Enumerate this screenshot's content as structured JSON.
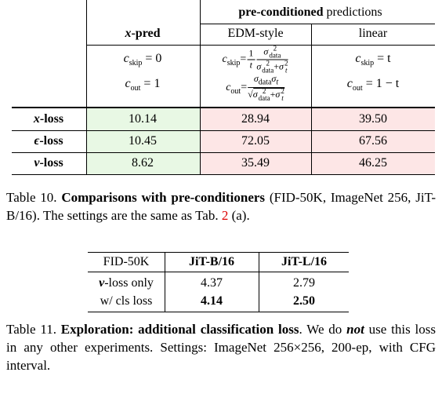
{
  "table10": {
    "group_header": [
      "pre-conditioned",
      "predictions"
    ],
    "col_xpred": {
      "symbol": "x",
      "text": "-pred"
    },
    "columns": [
      "EDM-style",
      "linear"
    ],
    "formulas": {
      "xpred_skip": [
        "c",
        "skip",
        "= 0"
      ],
      "xpred_out": [
        "c",
        "out",
        "= 1"
      ],
      "edm_skip": [
        "c",
        "skip",
        "=",
        "1",
        "t",
        "σ",
        "2",
        "data",
        "σ",
        "2",
        "data",
        "+",
        "σ",
        "2",
        "t"
      ],
      "edm_out": [
        "c",
        "out",
        "=",
        "σ",
        "data",
        "σ",
        "t",
        "√",
        "σ",
        "2",
        "data",
        "+",
        "σ",
        "2",
        "t"
      ],
      "linear_skip": [
        "c",
        "skip",
        "= t"
      ],
      "linear_out": [
        "c",
        "out",
        "= 1 − t"
      ]
    },
    "rows": [
      {
        "symbol": "x",
        "text": "-loss",
        "values": [
          "10.14",
          "28.94",
          "39.50"
        ]
      },
      {
        "symbol": "ϵ",
        "text": "-loss",
        "values": [
          "10.45",
          "72.05",
          "67.56"
        ]
      },
      {
        "symbol": "v",
        "text": "-loss",
        "values": [
          "8.62",
          "35.49",
          "46.25"
        ]
      }
    ]
  },
  "caption10": {
    "label": "Table 10.",
    "bold": "Comparisons with pre-conditioners",
    "text": "(FID-50K, ImageNet 256, JiT-B/16). The settings are the same as Tab.",
    "ref": "2",
    "end": "(a)."
  },
  "table11": {
    "header": [
      "FID-50K",
      "JiT-B/16",
      "JiT-L/16"
    ],
    "rows": [
      {
        "symbol": "v",
        "text": "-loss only",
        "values": [
          "4.37",
          "2.79"
        ]
      },
      {
        "text": "w/ cls loss",
        "values": [
          "4.14",
          "2.50"
        ]
      }
    ]
  },
  "caption11": {
    "label": "Table 11.",
    "bold": "Exploration: additional classification loss",
    "text1": ". We do",
    "em": "not",
    "text2": "use this loss in any other experiments. Settings: ImageNet 256×256, 200-ep, with CFG interval."
  }
}
